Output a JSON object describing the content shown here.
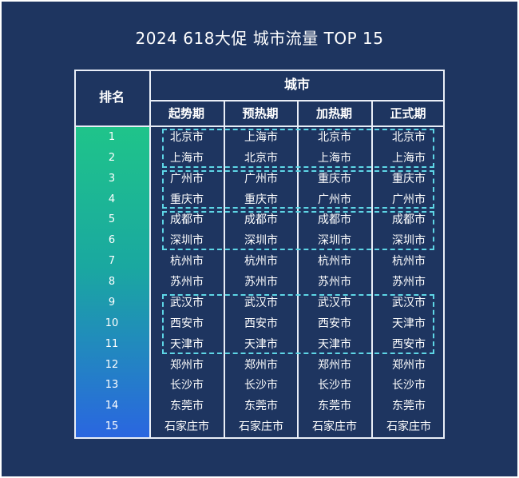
{
  "title": "2024 618大促 城市流量 TOP 15",
  "chart_data": {
    "type": "table",
    "title": "2024 618大促 城市流量 TOP 15",
    "row_header": "排名",
    "group_header": "城市",
    "columns": [
      "起势期",
      "预热期",
      "加热期",
      "正式期"
    ],
    "ranks": [
      "1",
      "2",
      "3",
      "4",
      "5",
      "6",
      "7",
      "8",
      "9",
      "10",
      "11",
      "12",
      "13",
      "14",
      "15"
    ],
    "rows": [
      [
        "北京市",
        "上海市",
        "北京市",
        "北京市"
      ],
      [
        "上海市",
        "北京市",
        "上海市",
        "上海市"
      ],
      [
        "广州市",
        "广州市",
        "重庆市",
        "重庆市"
      ],
      [
        "重庆市",
        "重庆市",
        "广州市",
        "广州市"
      ],
      [
        "成都市",
        "成都市",
        "成都市",
        "成都市"
      ],
      [
        "深圳市",
        "深圳市",
        "深圳市",
        "深圳市"
      ],
      [
        "杭州市",
        "杭州市",
        "杭州市",
        "杭州市"
      ],
      [
        "苏州市",
        "苏州市",
        "苏州市",
        "苏州市"
      ],
      [
        "武汉市",
        "武汉市",
        "武汉市",
        "武汉市"
      ],
      [
        "西安市",
        "西安市",
        "西安市",
        "天津市"
      ],
      [
        "天津市",
        "天津市",
        "天津市",
        "西安市"
      ],
      [
        "郑州市",
        "郑州市",
        "郑州市",
        "郑州市"
      ],
      [
        "长沙市",
        "长沙市",
        "长沙市",
        "长沙市"
      ],
      [
        "东莞市",
        "东莞市",
        "东莞市",
        "东莞市"
      ],
      [
        "石家庄市",
        "石家庄市",
        "石家庄市",
        "石家庄市"
      ]
    ],
    "highlight_groups": [
      [
        1,
        2
      ],
      [
        3,
        4
      ],
      [
        5,
        6
      ],
      [
        9,
        11
      ]
    ],
    "colors": {
      "background": "#1e3560",
      "border": "#e9eef7",
      "highlight": "#5ed6e6",
      "rank_gradient": [
        "#1fc48a",
        "#2a66e0"
      ]
    }
  }
}
